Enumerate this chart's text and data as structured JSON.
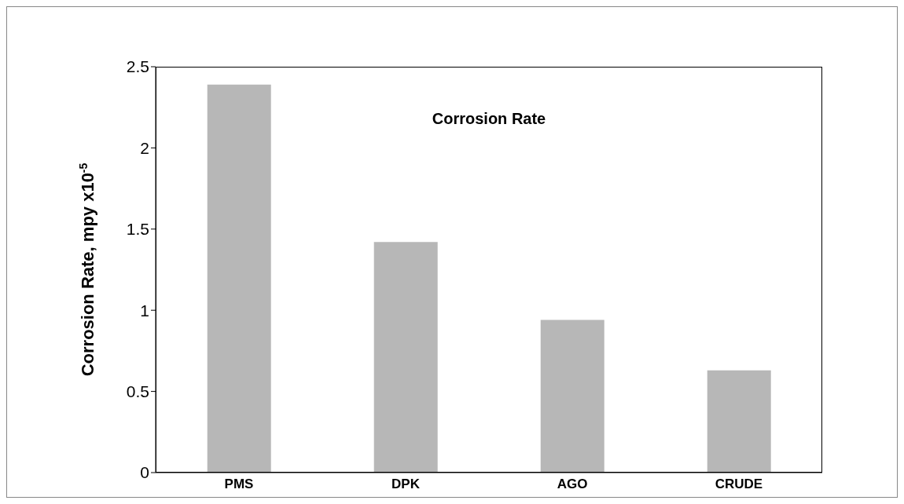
{
  "chart_data": {
    "type": "bar",
    "title": "Corrosion Rate",
    "ylabel": "Corrosion Rate,  mpy x10$^{-5}$",
    "categories": [
      "PMS",
      "DPK",
      "AGO",
      "CRUDE"
    ],
    "values": [
      2.39,
      1.42,
      0.94,
      0.63
    ],
    "color": "#b7b7b7",
    "ylim": [
      0,
      2.5
    ],
    "yticks": [
      0,
      0.5,
      1,
      1.5,
      2,
      2.5
    ],
    "grid": false
  }
}
